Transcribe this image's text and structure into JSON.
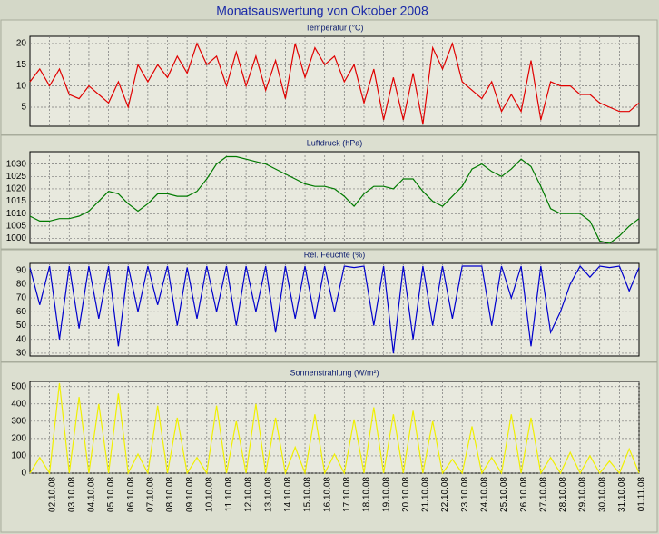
{
  "title": "Monatsauswertung von Oktober 2008",
  "chart_data": [
    {
      "type": "line",
      "title": "Temperatur (°C)",
      "color": "#e00000",
      "grid": true,
      "x": [
        0,
        0.5,
        1,
        1.5,
        2,
        2.5,
        3,
        3.5,
        4,
        4.5,
        5,
        5.5,
        6,
        6.5,
        7,
        7.5,
        8,
        8.5,
        9,
        9.5,
        10,
        10.5,
        11,
        11.5,
        12,
        12.5,
        13,
        13.5,
        14,
        14.5,
        15,
        15.5,
        16,
        16.5,
        17,
        17.5,
        18,
        18.5,
        19,
        19.5,
        20,
        20.5,
        21,
        21.5,
        22,
        22.5,
        23,
        23.5,
        24,
        24.5,
        25,
        25.5,
        26,
        26.5,
        27,
        27.5,
        28,
        28.5,
        29,
        29.5,
        30,
        30.5,
        31
      ],
      "values": [
        11,
        14,
        10,
        14,
        8,
        7,
        10,
        8,
        6,
        11,
        5,
        15,
        11,
        15,
        12,
        17,
        13,
        20,
        15,
        17,
        10,
        18,
        10,
        17,
        9,
        16,
        7,
        20,
        12,
        19,
        15,
        17,
        11,
        15,
        6,
        14,
        2,
        12,
        2,
        13,
        1,
        19,
        14,
        20,
        11,
        9,
        7,
        11,
        4,
        8,
        4,
        16,
        2,
        11,
        10,
        10,
        8,
        8,
        6,
        5,
        4,
        4,
        6
      ],
      "xlim": [
        0,
        31
      ],
      "xticks": [
        1,
        2,
        3,
        4,
        5,
        6,
        7,
        8,
        9,
        10,
        11,
        12,
        13,
        14,
        15,
        16,
        17,
        18,
        19,
        20,
        21,
        22,
        23,
        24,
        25,
        26,
        27,
        28,
        29,
        30
      ],
      "ylim": [
        0.5,
        21.7
      ],
      "yticks": [
        5,
        10,
        15,
        20
      ]
    },
    {
      "type": "line",
      "title": "Luftdruck (hPa)",
      "color": "#007a00",
      "grid": true,
      "x": [
        0,
        0.5,
        1,
        1.5,
        2,
        2.5,
        3,
        3.5,
        4,
        4.5,
        5,
        5.5,
        6,
        6.5,
        7,
        7.5,
        8,
        8.5,
        9,
        9.5,
        10,
        10.5,
        11,
        11.5,
        12,
        12.5,
        13,
        13.5,
        14,
        14.5,
        15,
        15.5,
        16,
        16.5,
        17,
        17.5,
        18,
        18.5,
        19,
        19.5,
        20,
        20.5,
        21,
        21.5,
        22,
        22.5,
        23,
        23.5,
        24,
        24.5,
        25,
        25.5,
        26,
        26.5,
        27,
        27.5,
        28,
        28.5,
        29,
        29.5,
        30,
        30.5,
        31
      ],
      "values": [
        1009,
        1007,
        1007,
        1008,
        1008,
        1009,
        1011,
        1015,
        1019,
        1018,
        1014,
        1011,
        1014,
        1018,
        1018,
        1017,
        1017,
        1019,
        1024,
        1030,
        1033,
        1033,
        1032,
        1031,
        1030,
        1028,
        1026,
        1024,
        1022,
        1021,
        1021,
        1020,
        1017,
        1013,
        1018,
        1021,
        1021,
        1020,
        1024,
        1024,
        1019,
        1015,
        1013,
        1017,
        1021,
        1028,
        1030,
        1027,
        1025,
        1028,
        1032,
        1029,
        1021,
        1012,
        1010,
        1010,
        1010,
        1007,
        999,
        998,
        1001,
        1005,
        1008
      ],
      "xlim": [
        0,
        31
      ],
      "xticks": [
        1,
        2,
        3,
        4,
        5,
        6,
        7,
        8,
        9,
        10,
        11,
        12,
        13,
        14,
        15,
        16,
        17,
        18,
        19,
        20,
        21,
        22,
        23,
        24,
        25,
        26,
        27,
        28,
        29,
        30
      ],
      "ylim": [
        998,
        1035
      ],
      "yticks": [
        1000,
        1005,
        1010,
        1015,
        1020,
        1025,
        1030
      ]
    },
    {
      "type": "line",
      "title": "Rel. Feuchte (%)",
      "color": "#0000cc",
      "grid": true,
      "x": [
        0,
        0.5,
        1,
        1.5,
        2,
        2.5,
        3,
        3.5,
        4,
        4.5,
        5,
        5.5,
        6,
        6.5,
        7,
        7.5,
        8,
        8.5,
        9,
        9.5,
        10,
        10.5,
        11,
        11.5,
        12,
        12.5,
        13,
        13.5,
        14,
        14.5,
        15,
        15.5,
        16,
        16.5,
        17,
        17.5,
        18,
        18.5,
        19,
        19.5,
        20,
        20.5,
        21,
        21.5,
        22,
        22.5,
        23,
        23.5,
        24,
        24.5,
        25,
        25.5,
        26,
        26.5,
        27,
        27.5,
        28,
        28.5,
        29,
        29.5,
        30,
        30.5,
        31
      ],
      "values": [
        92,
        65,
        93,
        40,
        93,
        48,
        93,
        55,
        93,
        35,
        93,
        60,
        93,
        65,
        93,
        50,
        92,
        55,
        93,
        60,
        93,
        50,
        93,
        60,
        93,
        45,
        93,
        55,
        93,
        55,
        93,
        60,
        93,
        92,
        93,
        50,
        93,
        30,
        93,
        40,
        93,
        50,
        93,
        55,
        93,
        93,
        93,
        50,
        93,
        70,
        93,
        35,
        93,
        45,
        60,
        80,
        93,
        85,
        93,
        92,
        93,
        75,
        92
      ],
      "xlim": [
        0,
        31
      ],
      "xticks": [
        1,
        2,
        3,
        4,
        5,
        6,
        7,
        8,
        9,
        10,
        11,
        12,
        13,
        14,
        15,
        16,
        17,
        18,
        19,
        20,
        21,
        22,
        23,
        24,
        25,
        26,
        27,
        28,
        29,
        30
      ],
      "ylim": [
        28,
        95
      ],
      "yticks": [
        30,
        40,
        50,
        60,
        70,
        80,
        90
      ]
    },
    {
      "type": "line",
      "title": "Sonnenstrahlung (W/m²)",
      "color": "#f0f000",
      "grid": true,
      "x": [
        0,
        0.5,
        1,
        1.5,
        2,
        2.5,
        3,
        3.5,
        4,
        4.5,
        5,
        5.5,
        6,
        6.5,
        7,
        7.5,
        8,
        8.5,
        9,
        9.5,
        10,
        10.5,
        11,
        11.5,
        12,
        12.5,
        13,
        13.5,
        14,
        14.5,
        15,
        15.5,
        16,
        16.5,
        17,
        17.5,
        18,
        18.5,
        19,
        19.5,
        20,
        20.5,
        21,
        21.5,
        22,
        22.5,
        23,
        23.5,
        24,
        24.5,
        25,
        25.5,
        26,
        26.5,
        27,
        27.5,
        28,
        28.5,
        29,
        29.5,
        30,
        30.5,
        31
      ],
      "values": [
        0,
        90,
        0,
        520,
        0,
        440,
        0,
        400,
        0,
        460,
        0,
        110,
        0,
        390,
        0,
        320,
        0,
        90,
        0,
        390,
        0,
        300,
        0,
        400,
        0,
        320,
        0,
        150,
        0,
        340,
        0,
        110,
        0,
        310,
        0,
        380,
        0,
        340,
        0,
        360,
        0,
        300,
        0,
        80,
        0,
        270,
        0,
        90,
        0,
        340,
        0,
        320,
        0,
        90,
        0,
        120,
        0,
        100,
        0,
        70,
        0,
        140,
        0
      ],
      "xlim": [
        0,
        31
      ],
      "xticks": [
        {
          "value": 1,
          "label": "02.10.08"
        },
        {
          "value": 2,
          "label": "03.10.08"
        },
        {
          "value": 3,
          "label": "04.10.08"
        },
        {
          "value": 4,
          "label": "05.10.08"
        },
        {
          "value": 5,
          "label": "06.10.08"
        },
        {
          "value": 6,
          "label": "07.10.08"
        },
        {
          "value": 7,
          "label": "08.10.08"
        },
        {
          "value": 8,
          "label": "09.10.08"
        },
        {
          "value": 9,
          "label": "10.10.08"
        },
        {
          "value": 10,
          "label": "11.10.08"
        },
        {
          "value": 11,
          "label": "12.10.08"
        },
        {
          "value": 12,
          "label": "13.10.08"
        },
        {
          "value": 13,
          "label": "14.10.08"
        },
        {
          "value": 14,
          "label": "15.10.08"
        },
        {
          "value": 15,
          "label": "16.10.08"
        },
        {
          "value": 16,
          "label": "17.10.08"
        },
        {
          "value": 17,
          "label": "18.10.08"
        },
        {
          "value": 18,
          "label": "19.10.08"
        },
        {
          "value": 19,
          "label": "20.10.08"
        },
        {
          "value": 20,
          "label": "21.10.08"
        },
        {
          "value": 21,
          "label": "22.10.08"
        },
        {
          "value": 22,
          "label": "23.10.08"
        },
        {
          "value": 23,
          "label": "24.10.08"
        },
        {
          "value": 24,
          "label": "25.10.08"
        },
        {
          "value": 25,
          "label": "26.10.08"
        },
        {
          "value": 26,
          "label": "27.10.08"
        },
        {
          "value": 27,
          "label": "28.10.08"
        },
        {
          "value": 28,
          "label": "29.10.08"
        },
        {
          "value": 29,
          "label": "30.10.08"
        },
        {
          "value": 30,
          "label": "31.10.08"
        },
        {
          "value": 31,
          "label": "01.11.08"
        }
      ],
      "ylim": [
        0,
        530
      ],
      "yticks": [
        0,
        100,
        200,
        300,
        400,
        500
      ]
    }
  ]
}
